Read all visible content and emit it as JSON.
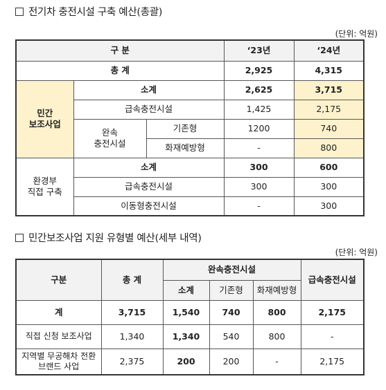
{
  "section1": {
    "title": "전기차 충전시설 구축 예산(총괄)",
    "unit": "(단위: 억원)",
    "header": {
      "gubun": "구 분",
      "y23": "‘23년",
      "y24": "‘24년"
    },
    "total": {
      "label": "총 계",
      "y23": "2,925",
      "y24": "4,315"
    },
    "private": {
      "group_line1": "민간",
      "group_line2": "보조사업",
      "subtotal": {
        "label": "소계",
        "y23": "2,625",
        "y24": "3,715"
      },
      "fast": {
        "label": "급속충전시설",
        "y23": "1,425",
        "y24": "2,175"
      },
      "slow_line1": "완속",
      "slow_line2": "충전시설",
      "existing": {
        "label": "기존형",
        "y23": "1200",
        "y24": "740"
      },
      "fireproof": {
        "label": "화재예방형",
        "y23": "-",
        "y24": "800"
      }
    },
    "env": {
      "group_line1": "환경부",
      "group_line2": "직접 구축",
      "subtotal": {
        "label": "소계",
        "y23": "300",
        "y24": "600"
      },
      "fast": {
        "label": "급속충전시설",
        "y23": "300",
        "y24": "300"
      },
      "mobile": {
        "label": "이동형충전시설",
        "y23": "-",
        "y24": "300"
      }
    }
  },
  "section2": {
    "title": "민간보조사업 지원 유형별 예산(세부 내역)",
    "unit": "(단위: 억원)",
    "header": {
      "gubun": "구분",
      "total": "총 계",
      "slow": "완속충전시설",
      "fast": "급속충전시설",
      "sub": "소계",
      "existing": "기존형",
      "fireproof": "화재예방형"
    },
    "rows": [
      {
        "label": "계",
        "total": "3,715",
        "sub": "1,540",
        "existing": "740",
        "fireproof": "800",
        "fast": "2,175"
      },
      {
        "label": "직접 신청 보조사업",
        "total": "1,340",
        "sub": "1,340",
        "existing": "540",
        "fireproof": "800",
        "fast": "-"
      },
      {
        "label_line1": "지역별 무공해차 전환",
        "label_line2": "브랜드 사업",
        "total": "2,375",
        "sub": "200",
        "existing": "200",
        "fireproof": "-",
        "fast": "2,175"
      }
    ]
  }
}
